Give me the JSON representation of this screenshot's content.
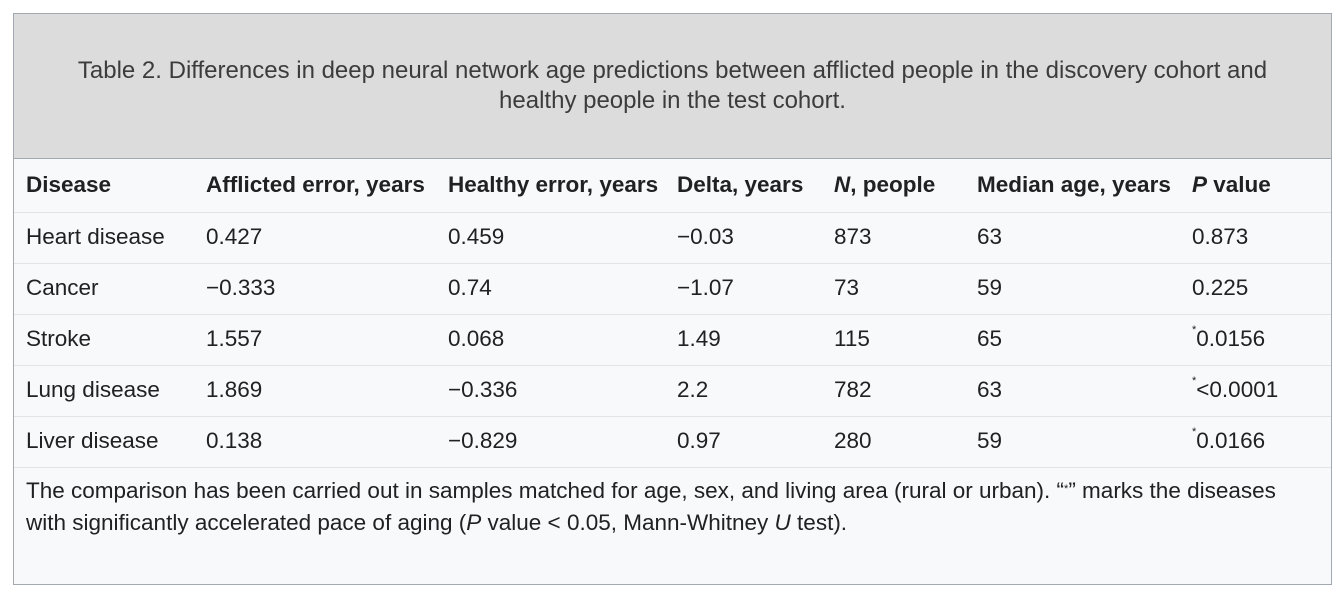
{
  "caption": "Table 2. Differences in deep neural network age predictions between afflicted people in the discovery cohort and healthy people in the test cohort.",
  "columns": {
    "disease": "Disease",
    "afflicted_error": "Afflicted error, years",
    "healthy_error": "Healthy error, years",
    "delta": "Delta, years",
    "n_italic": "N",
    "n_rest": ", people",
    "median_age": "Median age, years",
    "p_italic": "P",
    "p_rest": " value"
  },
  "rows": [
    {
      "disease": "Heart disease",
      "afflicted_error": "0.427",
      "healthy_error": "0.459",
      "delta": "−0.03",
      "n": "873",
      "median_age": "63",
      "p_mark": "",
      "p_value": "0.873"
    },
    {
      "disease": "Cancer",
      "afflicted_error": "−0.333",
      "healthy_error": "0.74",
      "delta": "−1.07",
      "n": "73",
      "median_age": "59",
      "p_mark": "",
      "p_value": "0.225"
    },
    {
      "disease": "Stroke",
      "afflicted_error": "1.557",
      "healthy_error": "0.068",
      "delta": "1.49",
      "n": "115",
      "median_age": "65",
      "p_mark": "*",
      "p_value": "0.0156"
    },
    {
      "disease": "Lung disease",
      "afflicted_error": "1.869",
      "healthy_error": "−0.336",
      "delta": "2.2",
      "n": "782",
      "median_age": "63",
      "p_mark": "*",
      "p_value": "<0.0001"
    },
    {
      "disease": "Liver disease",
      "afflicted_error": "0.138",
      "healthy_error": "−0.829",
      "delta": "0.97",
      "n": "280",
      "median_age": "59",
      "p_mark": "*",
      "p_value": "0.0166"
    }
  ],
  "footnote": {
    "part1": "The comparison has been carried out in samples matched for age, sex, and living area (rural or urban). “",
    "star": "*",
    "part2": "” marks the diseases with significantly accelerated pace of aging (",
    "p_italic": "P",
    "part3": " value < 0.05, Mann-Whitney ",
    "u_italic": "U",
    "part4": " test)."
  }
}
